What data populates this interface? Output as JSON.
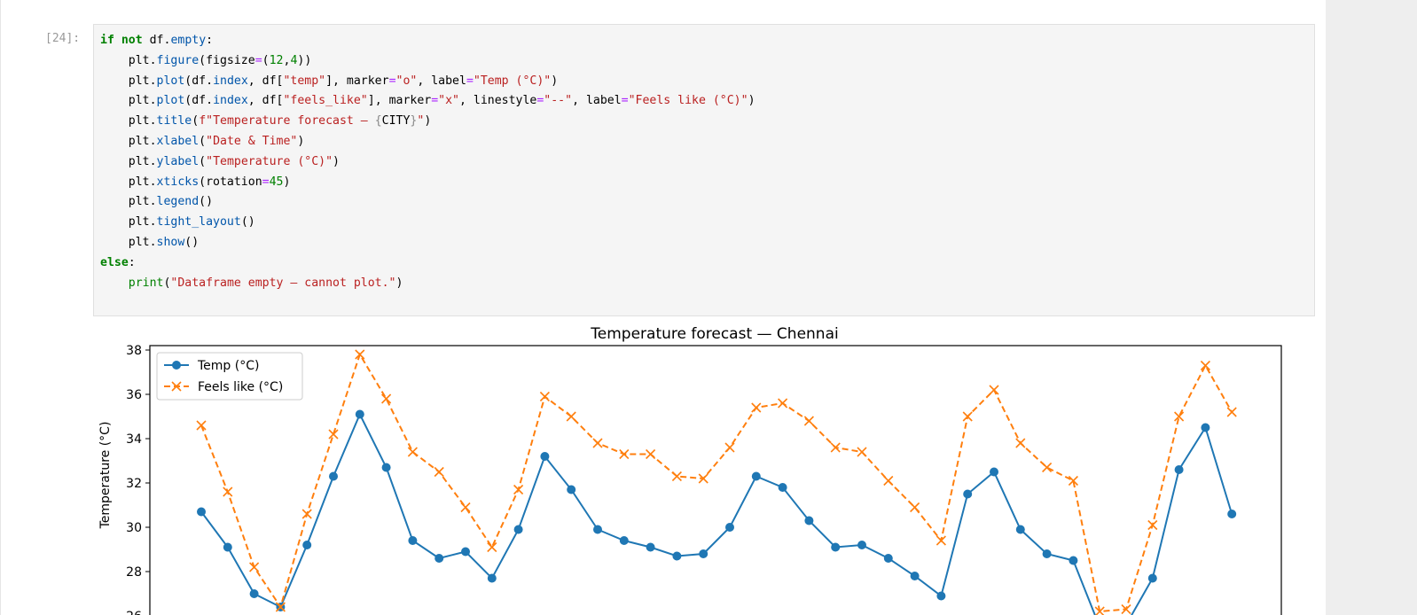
{
  "cell": {
    "prompt": "[24]:",
    "code_lines": [
      [
        {
          "t": "if",
          "c": "kw"
        },
        {
          "t": " "
        },
        {
          "t": "not",
          "c": "kw"
        },
        {
          "t": " df."
        },
        {
          "t": "empty",
          "c": "at"
        },
        {
          "t": ":"
        }
      ],
      [
        {
          "t": "    plt."
        },
        {
          "t": "figure",
          "c": "at"
        },
        {
          "t": "(figsize"
        },
        {
          "t": "=",
          "c": "op"
        },
        {
          "t": "("
        },
        {
          "t": "12",
          "c": "nm"
        },
        {
          "t": ","
        },
        {
          "t": "4",
          "c": "nm"
        },
        {
          "t": "))"
        }
      ],
      [
        {
          "t": "    plt."
        },
        {
          "t": "plot",
          "c": "at"
        },
        {
          "t": "(df."
        },
        {
          "t": "index",
          "c": "at"
        },
        {
          "t": ", df["
        },
        {
          "t": "\"temp\"",
          "c": "st"
        },
        {
          "t": "], marker"
        },
        {
          "t": "=",
          "c": "op"
        },
        {
          "t": "\"o\"",
          "c": "st"
        },
        {
          "t": ", label"
        },
        {
          "t": "=",
          "c": "op"
        },
        {
          "t": "\"Temp (°C)\"",
          "c": "st"
        },
        {
          "t": ")"
        }
      ],
      [
        {
          "t": "    plt."
        },
        {
          "t": "plot",
          "c": "at"
        },
        {
          "t": "(df."
        },
        {
          "t": "index",
          "c": "at"
        },
        {
          "t": ", df["
        },
        {
          "t": "\"feels_like\"",
          "c": "st"
        },
        {
          "t": "], marker"
        },
        {
          "t": "=",
          "c": "op"
        },
        {
          "t": "\"x\"",
          "c": "st"
        },
        {
          "t": ", linestyle"
        },
        {
          "t": "=",
          "c": "op"
        },
        {
          "t": "\"--\"",
          "c": "st"
        },
        {
          "t": ", label"
        },
        {
          "t": "=",
          "c": "op"
        },
        {
          "t": "\"Feels like (°C)\"",
          "c": "st"
        },
        {
          "t": ")"
        }
      ],
      [
        {
          "t": "    plt."
        },
        {
          "t": "title",
          "c": "at"
        },
        {
          "t": "("
        },
        {
          "t": "f\"Temperature forecast — ",
          "c": "st"
        },
        {
          "t": "{",
          "c": "br"
        },
        {
          "t": "CITY"
        },
        {
          "t": "}",
          "c": "br"
        },
        {
          "t": "\"",
          "c": "st"
        },
        {
          "t": ")"
        }
      ],
      [
        {
          "t": "    plt."
        },
        {
          "t": "xlabel",
          "c": "at"
        },
        {
          "t": "("
        },
        {
          "t": "\"Date & Time\"",
          "c": "st"
        },
        {
          "t": ")"
        }
      ],
      [
        {
          "t": "    plt."
        },
        {
          "t": "ylabel",
          "c": "at"
        },
        {
          "t": "("
        },
        {
          "t": "\"Temperature (°C)\"",
          "c": "st"
        },
        {
          "t": ")"
        }
      ],
      [
        {
          "t": "    plt."
        },
        {
          "t": "xticks",
          "c": "at"
        },
        {
          "t": "(rotation"
        },
        {
          "t": "=",
          "c": "op"
        },
        {
          "t": "45",
          "c": "nm"
        },
        {
          "t": ")"
        }
      ],
      [
        {
          "t": "    plt."
        },
        {
          "t": "legend",
          "c": "at"
        },
        {
          "t": "()"
        }
      ],
      [
        {
          "t": "    plt."
        },
        {
          "t": "tight_layout",
          "c": "at"
        },
        {
          "t": "()"
        }
      ],
      [
        {
          "t": "    plt."
        },
        {
          "t": "show",
          "c": "at"
        },
        {
          "t": "()"
        }
      ],
      [
        {
          "t": "else",
          "c": "kw"
        },
        {
          "t": ":"
        }
      ],
      [
        {
          "t": "    "
        },
        {
          "t": "print",
          "c": "nm"
        },
        {
          "t": "("
        },
        {
          "t": "\"Dataframe empty — cannot plot.\"",
          "c": "st"
        },
        {
          "t": ")"
        }
      ]
    ]
  },
  "chart_data": {
    "type": "line",
    "title": "Temperature forecast — Chennai",
    "xlabel": "",
    "ylabel": "Temperature (°C)",
    "ylim": [
      25.4,
      38.2
    ],
    "yticks": [
      26,
      28,
      30,
      32,
      34,
      36,
      38
    ],
    "grid": false,
    "legend_position": "top-left",
    "series": [
      {
        "name": "Temp (°C)",
        "color": "#1f77b4",
        "marker": "o",
        "linestyle": "solid",
        "values": [
          30.7,
          29.1,
          27.0,
          26.4,
          29.2,
          32.3,
          35.1,
          32.7,
          29.4,
          28.6,
          28.9,
          27.7,
          29.9,
          33.2,
          31.7,
          29.9,
          29.4,
          29.1,
          28.7,
          28.8,
          30.0,
          32.3,
          31.8,
          30.3,
          29.1,
          29.2,
          28.6,
          27.8,
          26.9,
          31.5,
          32.5,
          29.9,
          28.8,
          28.5,
          25.5,
          25.6,
          27.7,
          32.6,
          34.5,
          30.6
        ]
      },
      {
        "name": "Feels like (°C)",
        "color": "#ff7f0e",
        "marker": "x",
        "linestyle": "dashed",
        "values": [
          34.6,
          31.6,
          28.2,
          26.4,
          30.6,
          34.2,
          37.8,
          35.8,
          33.4,
          32.5,
          30.9,
          29.1,
          31.7,
          35.9,
          35.0,
          33.8,
          33.3,
          33.3,
          32.3,
          32.2,
          33.6,
          35.4,
          35.6,
          34.8,
          33.6,
          33.4,
          32.1,
          30.9,
          29.4,
          35.0,
          36.2,
          33.8,
          32.7,
          32.1,
          26.2,
          26.3,
          30.1,
          35.0,
          37.3,
          35.2
        ]
      }
    ]
  }
}
